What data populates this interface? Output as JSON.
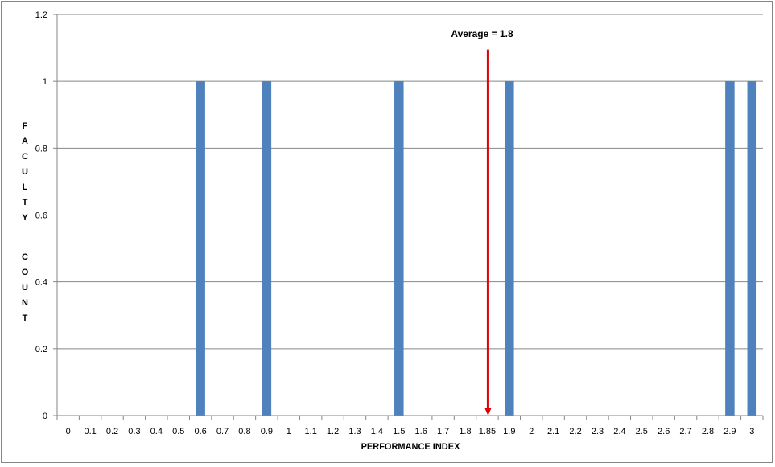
{
  "chart_data": {
    "type": "bar",
    "title": "",
    "xlabel": "PERFORMANCE INDEX",
    "ylabel": "FACULTY COUNT",
    "ylim": [
      0,
      1.2
    ],
    "yticks": [
      "0",
      "0.2",
      "0.4",
      "0.6",
      "0.8",
      "1",
      "1.2"
    ],
    "categories": [
      "0",
      "0.1",
      "0.2",
      "0.3",
      "0.4",
      "0.5",
      "0.6",
      "0.7",
      "0.8",
      "0.9",
      "1",
      "1.1",
      "1.2",
      "1.3",
      "1.4",
      "1.5",
      "1.6",
      "1.7",
      "1.8",
      "1.85",
      "1.9",
      "2",
      "2.1",
      "2.2",
      "2.3",
      "2.4",
      "2.5",
      "2.6",
      "2.7",
      "2.8",
      "2.9",
      "3"
    ],
    "values": [
      0,
      0,
      0,
      0,
      0,
      0,
      1,
      0,
      0,
      1,
      0,
      0,
      0,
      0,
      0,
      1,
      0,
      0,
      0,
      0,
      1,
      0,
      0,
      0,
      0,
      0,
      0,
      0,
      0,
      0,
      1,
      1
    ],
    "bar_color": "#4F81BD",
    "grid": true,
    "legend": "none",
    "annotation": {
      "text": "Average = 1.8",
      "at_category": "1.85",
      "arrow_from_y": 1.095,
      "arrow_to_y": 0,
      "color": "#E00000"
    }
  }
}
